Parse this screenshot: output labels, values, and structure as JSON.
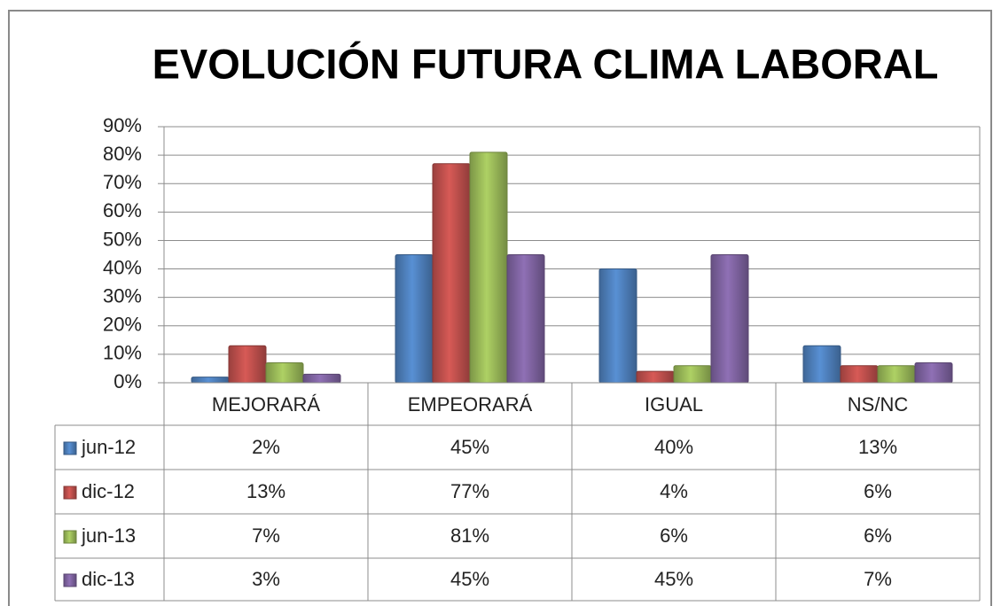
{
  "chart_data": {
    "type": "bar",
    "title": "EVOLUCIÓN FUTURA CLIMA LABORAL",
    "categories": [
      "MEJORARÁ",
      "EMPEORARÁ",
      "IGUAL",
      "NS/NC"
    ],
    "series": [
      {
        "name": "jun-12",
        "color": "#4f81bd",
        "values": [
          2,
          45,
          40,
          13
        ],
        "value_labels": [
          "2%",
          "45%",
          "40%",
          "13%"
        ]
      },
      {
        "name": "dic-12",
        "color": "#c0504d",
        "values": [
          13,
          77,
          4,
          6
        ],
        "value_labels": [
          "13%",
          "77%",
          "4%",
          "6%"
        ]
      },
      {
        "name": "jun-13",
        "color": "#9bbb59",
        "values": [
          7,
          81,
          6,
          6
        ],
        "value_labels": [
          "7%",
          "81%",
          "6%",
          "6%"
        ]
      },
      {
        "name": "dic-13",
        "color": "#8064a2",
        "values": [
          3,
          45,
          45,
          7
        ],
        "value_labels": [
          "3%",
          "45%",
          "45%",
          "7%"
        ]
      }
    ],
    "ylim": [
      0,
      90
    ],
    "yticks": [
      {
        "value": 0,
        "label": "0%"
      },
      {
        "value": 10,
        "label": "10%"
      },
      {
        "value": 20,
        "label": "20%"
      },
      {
        "value": 30,
        "label": "30%"
      },
      {
        "value": 40,
        "label": "40%"
      },
      {
        "value": 50,
        "label": "50%"
      },
      {
        "value": 60,
        "label": "60%"
      },
      {
        "value": 70,
        "label": "70%"
      },
      {
        "value": 80,
        "label": "80%"
      },
      {
        "value": 90,
        "label": "90%"
      }
    ],
    "grid": true,
    "data_table": true
  }
}
